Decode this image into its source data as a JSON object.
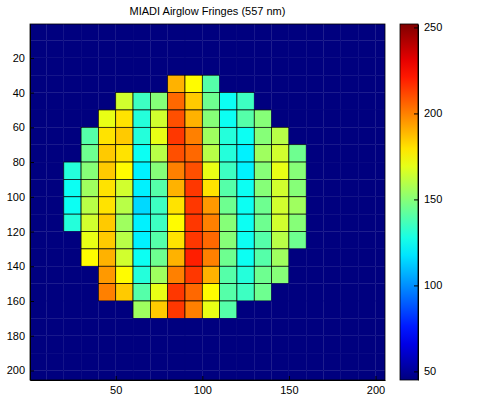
{
  "chart_data": {
    "type": "heatmap",
    "title": "MIADI Airglow Fringes (557 nm)",
    "color": "jet",
    "x": [
      5,
      15,
      25,
      35,
      45,
      55,
      65,
      75,
      85,
      95,
      105,
      115,
      125,
      135,
      145,
      155,
      165,
      175,
      185,
      195,
      205
    ],
    "y": [
      5,
      15,
      25,
      35,
      45,
      55,
      65,
      75,
      85,
      95,
      105,
      115,
      125,
      135,
      145,
      155,
      165,
      175,
      185,
      195,
      205
    ],
    "cells": [
      [
        45,
        45,
        45,
        45,
        45,
        45,
        45,
        45,
        45,
        45,
        45,
        45,
        45,
        45,
        45,
        45,
        45,
        45,
        45,
        45,
        45
      ],
      [
        45,
        45,
        45,
        45,
        45,
        45,
        45,
        45,
        45,
        45,
        45,
        45,
        45,
        45,
        45,
        45,
        45,
        45,
        45,
        45,
        45
      ],
      [
        45,
        45,
        45,
        45,
        45,
        45,
        45,
        45,
        45,
        45,
        45,
        45,
        45,
        45,
        45,
        45,
        45,
        45,
        45,
        45,
        45
      ],
      [
        45,
        45,
        45,
        45,
        45,
        45,
        45,
        45,
        190,
        175,
        140,
        45,
        45,
        45,
        45,
        45,
        45,
        45,
        45,
        45,
        45
      ],
      [
        45,
        45,
        45,
        45,
        45,
        165,
        135,
        150,
        205,
        185,
        145,
        125,
        135,
        45,
        45,
        45,
        45,
        45,
        45,
        45,
        45
      ],
      [
        45,
        45,
        45,
        45,
        170,
        180,
        130,
        165,
        210,
        190,
        150,
        125,
        140,
        150,
        45,
        45,
        45,
        45,
        45,
        45,
        45
      ],
      [
        45,
        45,
        45,
        140,
        180,
        185,
        130,
        170,
        215,
        200,
        155,
        130,
        125,
        150,
        160,
        45,
        45,
        45,
        45,
        45,
        45
      ],
      [
        45,
        45,
        45,
        145,
        185,
        180,
        125,
        160,
        210,
        205,
        160,
        130,
        120,
        155,
        165,
        145,
        45,
        45,
        45,
        45,
        45
      ],
      [
        45,
        45,
        130,
        150,
        185,
        175,
        120,
        150,
        200,
        210,
        170,
        135,
        120,
        150,
        170,
        150,
        45,
        45,
        45,
        45,
        45
      ],
      [
        45,
        45,
        125,
        155,
        180,
        165,
        120,
        140,
        190,
        215,
        180,
        140,
        125,
        150,
        165,
        150,
        45,
        45,
        45,
        45,
        45
      ],
      [
        45,
        45,
        125,
        160,
        180,
        160,
        115,
        135,
        180,
        215,
        195,
        145,
        125,
        145,
        165,
        155,
        45,
        45,
        45,
        45,
        45
      ],
      [
        45,
        45,
        130,
        165,
        185,
        155,
        120,
        135,
        175,
        215,
        200,
        150,
        125,
        145,
        165,
        150,
        45,
        45,
        45,
        45,
        45
      ],
      [
        45,
        45,
        45,
        170,
        185,
        160,
        120,
        140,
        180,
        215,
        205,
        150,
        125,
        140,
        160,
        145,
        45,
        45,
        45,
        45,
        45
      ],
      [
        45,
        45,
        45,
        175,
        190,
        165,
        125,
        145,
        190,
        220,
        200,
        145,
        125,
        140,
        155,
        45,
        45,
        45,
        45,
        45,
        45
      ],
      [
        45,
        45,
        45,
        45,
        195,
        175,
        130,
        155,
        200,
        215,
        190,
        140,
        130,
        145,
        150,
        45,
        45,
        45,
        45,
        45,
        45
      ],
      [
        45,
        45,
        45,
        45,
        200,
        185,
        140,
        170,
        215,
        205,
        175,
        140,
        135,
        145,
        45,
        45,
        45,
        45,
        45,
        45,
        45
      ],
      [
        45,
        45,
        45,
        45,
        45,
        45,
        155,
        185,
        215,
        200,
        170,
        140,
        45,
        45,
        45,
        45,
        45,
        45,
        45,
        45,
        45
      ],
      [
        45,
        45,
        45,
        45,
        45,
        45,
        45,
        45,
        45,
        45,
        45,
        45,
        45,
        45,
        45,
        45,
        45,
        45,
        45,
        45,
        45
      ],
      [
        45,
        45,
        45,
        45,
        45,
        45,
        45,
        45,
        45,
        45,
        45,
        45,
        45,
        45,
        45,
        45,
        45,
        45,
        45,
        45,
        45
      ],
      [
        45,
        45,
        45,
        45,
        45,
        45,
        45,
        45,
        45,
        45,
        45,
        45,
        45,
        45,
        45,
        45,
        45,
        45,
        45,
        45,
        45
      ],
      [
        45,
        45,
        45,
        45,
        45,
        45,
        45,
        45,
        45,
        45,
        45,
        45,
        45,
        45,
        45,
        45,
        45,
        45,
        45,
        45,
        45
      ]
    ],
    "xlim": [
      0.5,
      205.5
    ],
    "ylim": [
      0.5,
      205.5
    ],
    "xticks": [
      50,
      100,
      150,
      200
    ],
    "yticks": [
      20,
      40,
      60,
      80,
      100,
      120,
      140,
      160,
      180,
      200
    ],
    "colorbar": {
      "range": [
        45,
        252
      ],
      "ticks": [
        50,
        100,
        150,
        200,
        250
      ]
    }
  }
}
